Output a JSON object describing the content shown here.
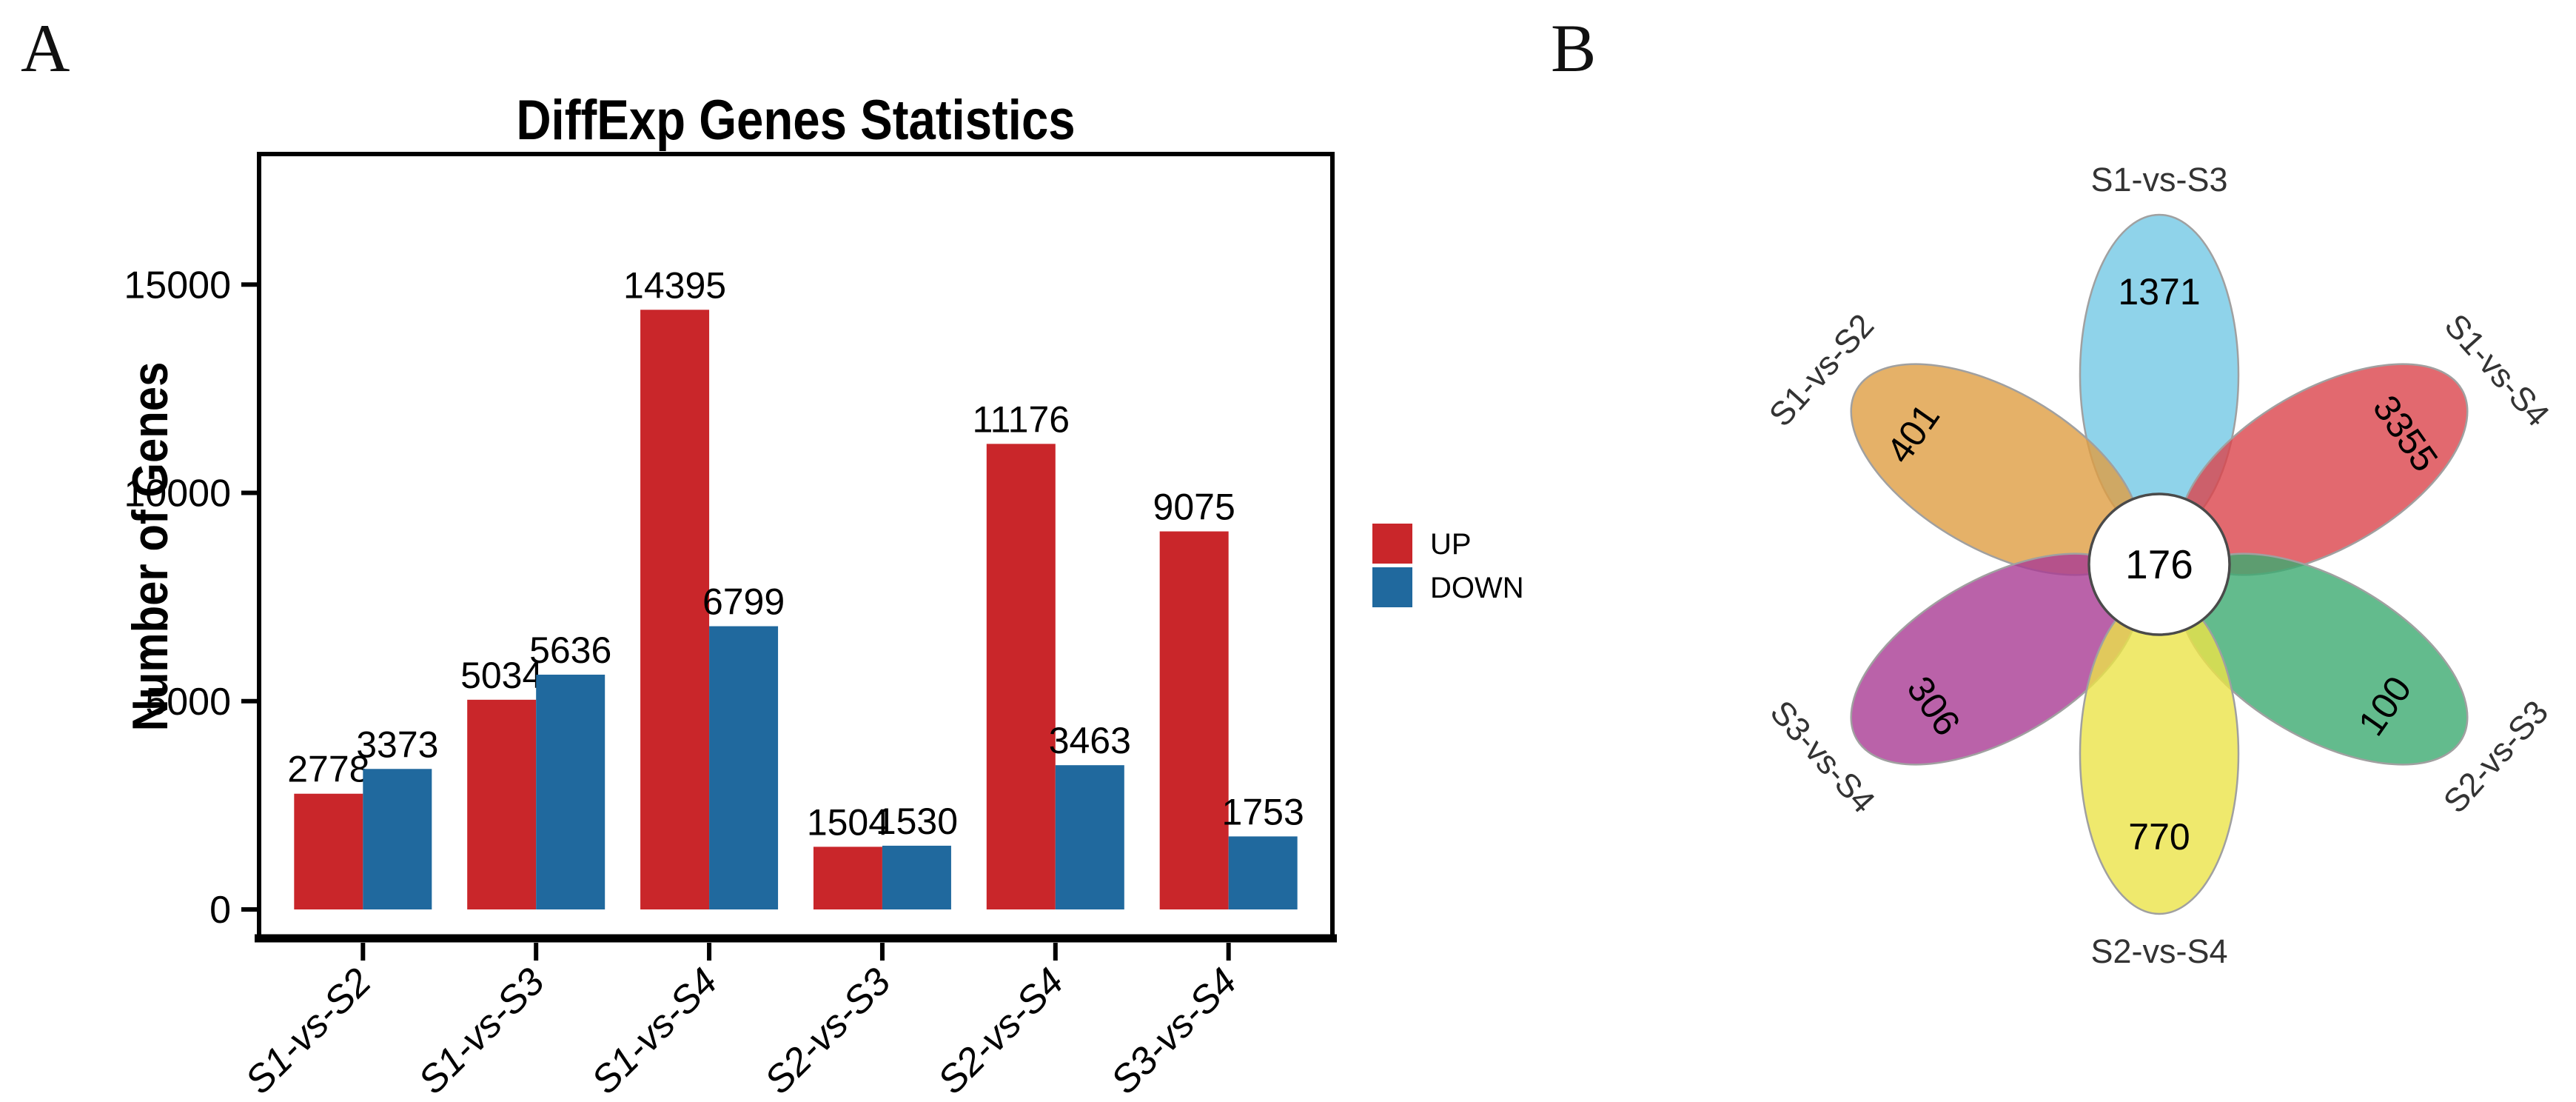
{
  "panels": {
    "a": {
      "label": "A"
    },
    "b": {
      "label": "B"
    }
  },
  "chart_data": [
    {
      "type": "bar",
      "title": "DiffExp Genes Statistics",
      "xlabel": "",
      "ylabel": "Number of Genes",
      "categories": [
        "S1-vs-S2",
        "S1-vs-S3",
        "S1-vs-S4",
        "S2-vs-S3",
        "S2-vs-S4",
        "S3-vs-S4"
      ],
      "series": [
        {
          "name": "UP",
          "color": "#C9262A",
          "values": [
            2778,
            5034,
            14395,
            1504,
            11176,
            9075
          ]
        },
        {
          "name": "DOWN",
          "color": "#20699E",
          "values": [
            3373,
            5636,
            6799,
            1530,
            3463,
            1753
          ]
        }
      ],
      "ylim": [
        0,
        18000
      ],
      "yticks": [
        0,
        5000,
        10000,
        15000
      ],
      "grid": false,
      "bar_labels": true,
      "legend_position": "right",
      "axis_color": "#000000"
    },
    {
      "type": "flower-venn",
      "center": {
        "value": "176",
        "fill": "#FFFFFF",
        "stroke": "#4A4A4A"
      },
      "petal_opacity": 0.8,
      "petal_stroke": "#A0A0A0",
      "petals": [
        {
          "label": "S1-vs-S3",
          "value": "1371",
          "color": "#73C8E5",
          "position": "top"
        },
        {
          "label": "S1-vs-S4",
          "value": "3355",
          "color": "#DB434B",
          "position": "upper-right"
        },
        {
          "label": "S2-vs-S3",
          "value": "100",
          "color": "#3CAA70",
          "position": "lower-right"
        },
        {
          "label": "S2-vs-S4",
          "value": "770",
          "color": "#EBE348",
          "position": "bottom"
        },
        {
          "label": "S3-vs-S4",
          "value": "306",
          "color": "#A93B93",
          "position": "lower-left"
        },
        {
          "label": "S1-vs-S2",
          "value": "401",
          "color": "#DE9D42",
          "position": "upper-left"
        }
      ]
    }
  ]
}
